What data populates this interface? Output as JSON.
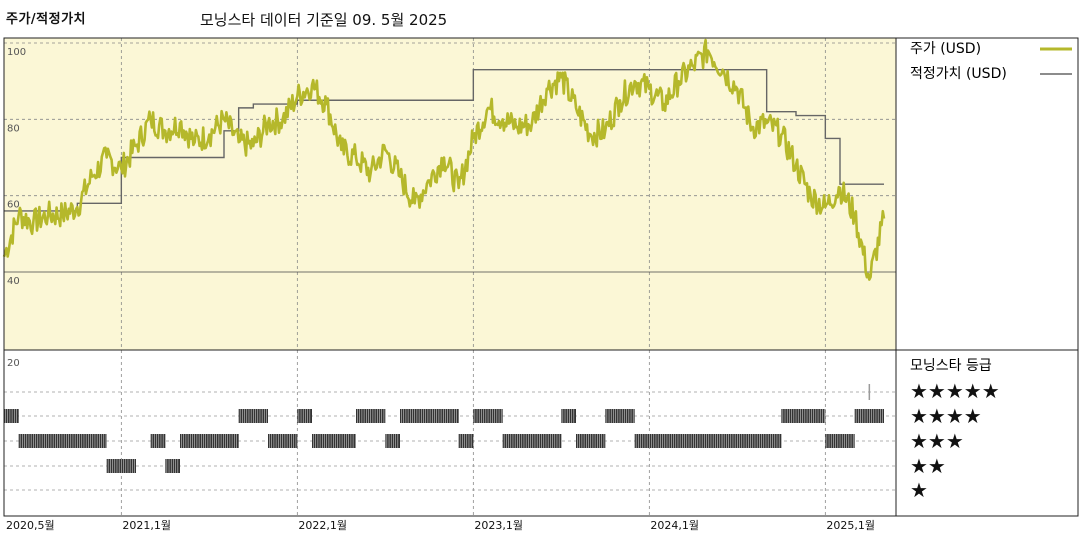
{
  "header": {
    "left_title": "주가/적정가치",
    "center_title": "모닝스타 데이터 기준일 09. 5월 2025"
  },
  "legend": {
    "price_label": "주가 (USD)",
    "fair_label": "적정가치 (USD)",
    "price_color": "#b5b82b",
    "fair_color": "#666666",
    "bg_color": "#fbf7d6"
  },
  "rating_panel": {
    "title": "모닝스타 등급",
    "stars": [
      "★★★★★",
      "★★★★",
      "★★★",
      "★★",
      "★"
    ]
  },
  "chart_data": {
    "type": "line",
    "x_start": "2020-05",
    "x_end": "2025-05",
    "x_ticks": [
      "2020,5월",
      "2021,1월",
      "2022,1월",
      "2023,1월",
      "2024,1월",
      "2025,1월"
    ],
    "y_ticks": [
      "100",
      "80",
      "60",
      "40"
    ],
    "rating_y_tick": "20",
    "ylim": [
      20,
      100
    ],
    "grid": true,
    "series": [
      {
        "name": "주가 (USD)",
        "points": [
          [
            "2020-05",
            44
          ],
          [
            "2020-06",
            55
          ],
          [
            "2020-07",
            53
          ],
          [
            "2020-08",
            55
          ],
          [
            "2020-09",
            55
          ],
          [
            "2020-10",
            57
          ],
          [
            "2020-11",
            65
          ],
          [
            "2020-12",
            70
          ],
          [
            "2021-01",
            67
          ],
          [
            "2021-02",
            73
          ],
          [
            "2021-03",
            80
          ],
          [
            "2021-04",
            77
          ],
          [
            "2021-05",
            79
          ],
          [
            "2021-06",
            74
          ],
          [
            "2021-07",
            76
          ],
          [
            "2021-08",
            80
          ],
          [
            "2021-09",
            74
          ],
          [
            "2021-10",
            73
          ],
          [
            "2021-11",
            79
          ],
          [
            "2021-12",
            80
          ],
          [
            "2022-01",
            86
          ],
          [
            "2022-02",
            89
          ],
          [
            "2022-03",
            84
          ],
          [
            "2022-04",
            72
          ],
          [
            "2022-05",
            70
          ],
          [
            "2022-06",
            66
          ],
          [
            "2022-07",
            72
          ],
          [
            "2022-08",
            65
          ],
          [
            "2022-09",
            58
          ],
          [
            "2022-10",
            64
          ],
          [
            "2022-11",
            70
          ],
          [
            "2022-12",
            62
          ],
          [
            "2023-01",
            75
          ],
          [
            "2023-02",
            83
          ],
          [
            "2023-03",
            80
          ],
          [
            "2023-04",
            78
          ],
          [
            "2023-05",
            79
          ],
          [
            "2023-06",
            88
          ],
          [
            "2023-07",
            91
          ],
          [
            "2023-08",
            83
          ],
          [
            "2023-09",
            76
          ],
          [
            "2023-10",
            77
          ],
          [
            "2023-11",
            85
          ],
          [
            "2023-12",
            90
          ],
          [
            "2024-01",
            88
          ],
          [
            "2024-02",
            84
          ],
          [
            "2024-03",
            90
          ],
          [
            "2024-04",
            94
          ],
          [
            "2024-05",
            98
          ],
          [
            "2024-06",
            93
          ],
          [
            "2024-07",
            88
          ],
          [
            "2024-08",
            78
          ],
          [
            "2024-09",
            79
          ],
          [
            "2024-10",
            76
          ],
          [
            "2024-11",
            68
          ],
          [
            "2024-12",
            60
          ],
          [
            "2025-01",
            57
          ],
          [
            "2025-02",
            62
          ],
          [
            "2025-03",
            55
          ],
          [
            "2025-04",
            38
          ],
          [
            "2025-05",
            54
          ]
        ]
      },
      {
        "name": "적정가치 (USD)",
        "points": [
          [
            "2020-05",
            56
          ],
          [
            "2020-10",
            58
          ],
          [
            "2021-01",
            70
          ],
          [
            "2021-08",
            77
          ],
          [
            "2021-09",
            83
          ],
          [
            "2021-10",
            84
          ],
          [
            "2022-01",
            85
          ],
          [
            "2023-01",
            93
          ],
          [
            "2024-09",
            82
          ],
          [
            "2024-11",
            81
          ],
          [
            "2025-01",
            75
          ],
          [
            "2025-02",
            63
          ],
          [
            "2025-05",
            63
          ]
        ]
      }
    ],
    "ratings": [
      {
        "stars": 5,
        "from": "2025-04",
        "to": "2025-04"
      },
      {
        "stars": 4,
        "from": "2020-05",
        "to": "2020-06"
      },
      {
        "stars": 3,
        "from": "2020-06",
        "to": "2020-12"
      },
      {
        "stars": 2,
        "from": "2020-12",
        "to": "2021-02"
      },
      {
        "stars": 3,
        "from": "2021-03",
        "to": "2021-04"
      },
      {
        "stars": 2,
        "from": "2021-04",
        "to": "2021-05"
      },
      {
        "stars": 3,
        "from": "2021-05",
        "to": "2021-09"
      },
      {
        "stars": 4,
        "from": "2021-09",
        "to": "2021-11"
      },
      {
        "stars": 3,
        "from": "2021-11",
        "to": "2022-01"
      },
      {
        "stars": 4,
        "from": "2022-01",
        "to": "2022-02"
      },
      {
        "stars": 3,
        "from": "2022-02",
        "to": "2022-05"
      },
      {
        "stars": 4,
        "from": "2022-05",
        "to": "2022-07"
      },
      {
        "stars": 3,
        "from": "2022-07",
        "to": "2022-08"
      },
      {
        "stars": 4,
        "from": "2022-08",
        "to": "2022-12"
      },
      {
        "stars": 3,
        "from": "2022-12",
        "to": "2023-01"
      },
      {
        "stars": 4,
        "from": "2023-01",
        "to": "2023-03"
      },
      {
        "stars": 3,
        "from": "2023-03",
        "to": "2023-07"
      },
      {
        "stars": 4,
        "from": "2023-07",
        "to": "2023-08"
      },
      {
        "stars": 3,
        "from": "2023-08",
        "to": "2023-10"
      },
      {
        "stars": 4,
        "from": "2023-10",
        "to": "2023-12"
      },
      {
        "stars": 3,
        "from": "2023-12",
        "to": "2024-06"
      },
      {
        "stars": 3,
        "from": "2024-06",
        "to": "2024-10"
      },
      {
        "stars": 4,
        "from": "2024-10",
        "to": "2025-01"
      },
      {
        "stars": 3,
        "from": "2025-01",
        "to": "2025-03"
      },
      {
        "stars": 4,
        "from": "2025-03",
        "to": "2025-05"
      }
    ]
  }
}
